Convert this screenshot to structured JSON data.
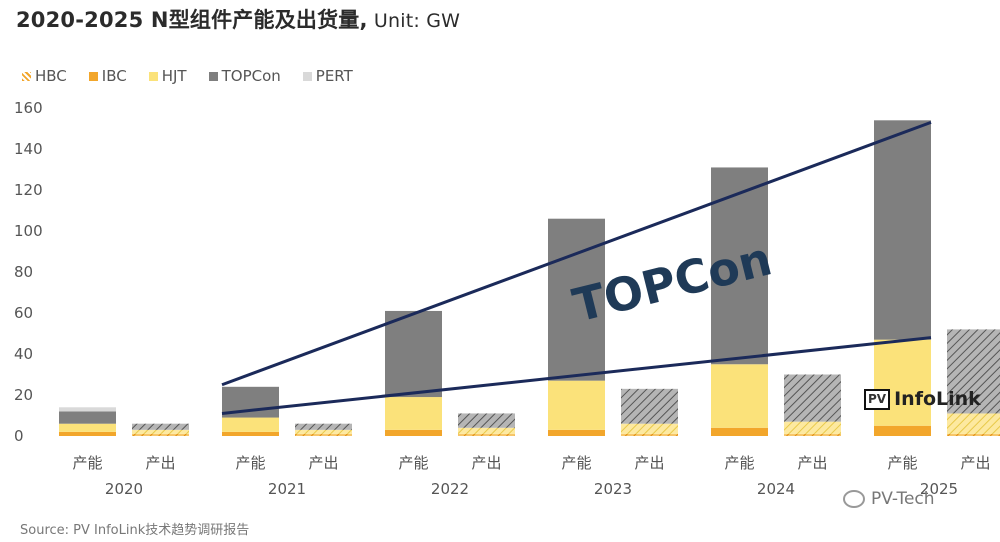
{
  "page": {
    "title_main": "2020-2025 N型组件产能及出货量,",
    "title_unit": " Unit: GW",
    "source": "Source: PV InfoLink技术趋势调研报告"
  },
  "legend": [
    {
      "label": "HBC",
      "color": "#f2a62b",
      "pattern": "hatch-orange"
    },
    {
      "label": "IBC",
      "color": "#f2a62b",
      "pattern": "solid"
    },
    {
      "label": "HJT",
      "color": "#fbe27a",
      "pattern": "solid"
    },
    {
      "label": "TOPCon",
      "color": "#7f7f7f",
      "pattern": "solid"
    },
    {
      "label": "PERT",
      "color": "#d9d9d9",
      "pattern": "solid"
    }
  ],
  "annotation": {
    "text": "TOPCon",
    "color": "#1f3a57"
  },
  "watermarks": {
    "infolink_box": "PV",
    "infolink_name": "InfoLink",
    "pvtech": "PV-Tech"
  },
  "colors": {
    "ibc": "#f2a62b",
    "hjt": "#fbe27a",
    "topcon": "#7f7f7f",
    "pert": "#d9d9d9",
    "trend_line": "#1b2a5a"
  },
  "chart_data": {
    "type": "bar",
    "stacked": true,
    "ylim": [
      0,
      160
    ],
    "yticks": [
      0,
      20,
      40,
      60,
      80,
      100,
      120,
      140,
      160
    ],
    "grid": false,
    "legend_position": "top-left",
    "groups": [
      "2020",
      "2021",
      "2022",
      "2023",
      "2024",
      "2025"
    ],
    "bar_labels": [
      "产能",
      "产出"
    ],
    "bars": [
      {
        "year": "2020",
        "label": "产能",
        "ibc": 2,
        "hjt": 4,
        "topcon": 6,
        "pert": 2
      },
      {
        "year": "2020",
        "label": "产出",
        "ibc": 1,
        "hjt": 2,
        "topcon": 3,
        "pert": 0
      },
      {
        "year": "2021",
        "label": "产能",
        "ibc": 2,
        "hjt": 7,
        "topcon": 15,
        "pert": 0
      },
      {
        "year": "2021",
        "label": "产出",
        "ibc": 1,
        "hjt": 2,
        "topcon": 3,
        "pert": 0
      },
      {
        "year": "2022",
        "label": "产能",
        "ibc": 3,
        "hjt": 16,
        "topcon": 42,
        "pert": 0
      },
      {
        "year": "2022",
        "label": "产出",
        "ibc": 1,
        "hjt": 3,
        "topcon": 7,
        "pert": 0
      },
      {
        "year": "2023",
        "label": "产能",
        "ibc": 3,
        "hjt": 24,
        "topcon": 79,
        "pert": 0
      },
      {
        "year": "2023",
        "label": "产出",
        "ibc": 1,
        "hjt": 5,
        "topcon": 17,
        "pert": 0
      },
      {
        "year": "2024",
        "label": "产能",
        "ibc": 4,
        "hjt": 31,
        "topcon": 96,
        "pert": 0
      },
      {
        "year": "2024",
        "label": "产出",
        "ibc": 1,
        "hjt": 6,
        "topcon": 23,
        "pert": 0
      },
      {
        "year": "2025",
        "label": "产能",
        "ibc": 5,
        "hjt": 42,
        "topcon": 107,
        "pert": 0
      },
      {
        "year": "2025",
        "label": "产出",
        "ibc": 1,
        "hjt": 10,
        "topcon": 41,
        "pert": 0
      }
    ],
    "trend_lines": [
      {
        "from": {
          "year": "2021",
          "value": 25
        },
        "to": {
          "year": "2025",
          "value": 153
        }
      },
      {
        "from": {
          "year": "2021",
          "value": 11
        },
        "to": {
          "year": "2025",
          "value": 48
        }
      }
    ]
  }
}
